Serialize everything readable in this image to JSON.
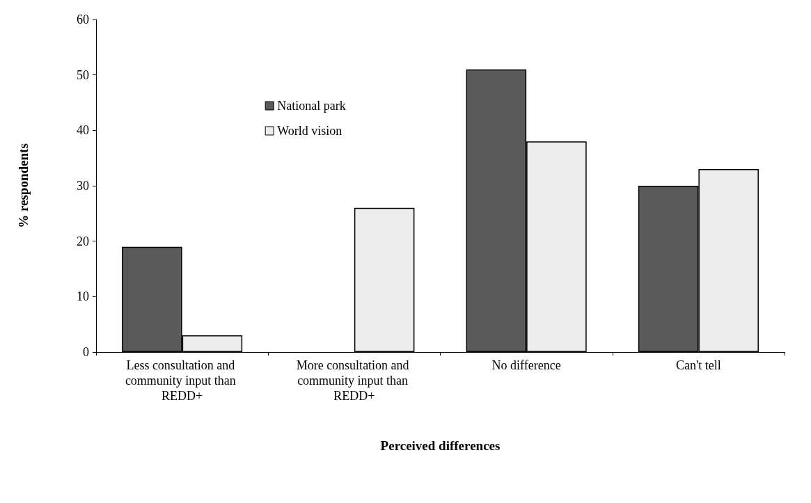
{
  "chart_data": {
    "type": "bar",
    "xlabel": "Perceived differences",
    "ylabel": "% respondents",
    "categories": [
      "Less consultation and community input than REDD+",
      "More consultation and community input than REDD+",
      "No difference",
      "Can't tell"
    ],
    "series": [
      {
        "name": "National park",
        "color": "#5a5a5a",
        "values": [
          19,
          null,
          51,
          30
        ]
      },
      {
        "name": "World vision",
        "color": "#ececec",
        "values": [
          3,
          26,
          38,
          33
        ]
      }
    ],
    "ylim": [
      0,
      60
    ],
    "yticks": [
      0,
      10,
      20,
      30,
      40,
      50,
      60
    ],
    "grid": false,
    "legend": "top left"
  }
}
